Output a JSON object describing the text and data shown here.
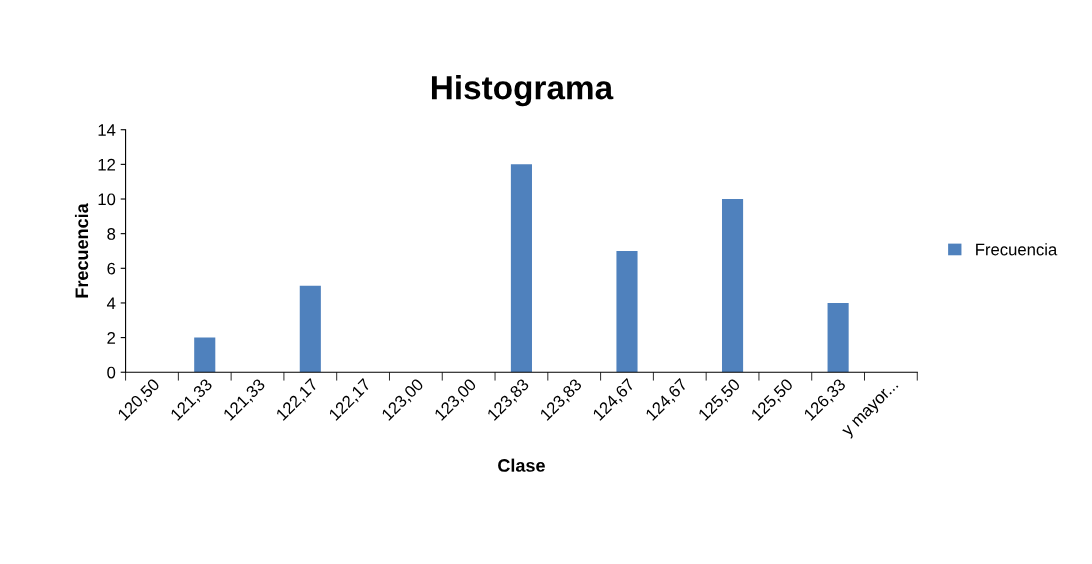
{
  "chart_data": {
    "type": "bar",
    "title": "Histograma",
    "xlabel": "Clase",
    "ylabel": "Frecuencia",
    "categories": [
      "120,50",
      "121,33",
      "121,33",
      "122,17",
      "122,17",
      "123,00",
      "123,00",
      "123,83",
      "123,83",
      "124,67",
      "124,67",
      "125,50",
      "125,50",
      "126,33",
      "y mayor..."
    ],
    "series": [
      {
        "name": "Frecuencia",
        "color": "#4f81bd",
        "values": [
          0,
          2,
          0,
          5,
          0,
          0,
          0,
          12,
          0,
          7,
          0,
          10,
          0,
          4,
          0
        ]
      }
    ],
    "ylim": [
      0,
      14
    ],
    "yticks": [
      0,
      2,
      4,
      6,
      8,
      10,
      12,
      14
    ],
    "grid": false,
    "legend": "right"
  }
}
